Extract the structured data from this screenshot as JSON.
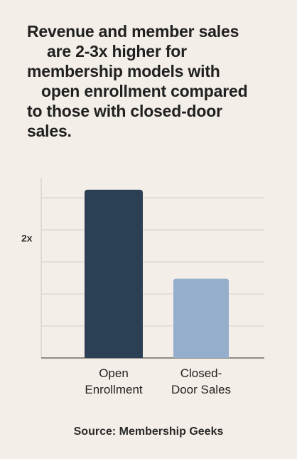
{
  "headline": {
    "lines": [
      "Revenue and member sales",
      "are 2-3x higher for",
      "membership models with",
      "open enrollment compared",
      "to those with closed-door",
      "sales."
    ]
  },
  "source": "Source: Membership Geeks",
  "colors": {
    "background": "#f3eee7",
    "bar_open": "#2b3f55",
    "bar_closed": "#94aecb",
    "grid": "#d6d0c8",
    "axis": "#6f6a64"
  },
  "chart_data": {
    "type": "bar",
    "title": "",
    "xlabel": "",
    "ylabel": "",
    "categories": [
      [
        "Open",
        "Enrollment"
      ],
      [
        "Closed-",
        "Door Sales"
      ]
    ],
    "values": [
      2.8,
      1.32
    ],
    "ylim": [
      0,
      3.2
    ],
    "y_tick_labels": [
      {
        "value": 2,
        "label": "2x"
      }
    ],
    "grid": true,
    "legend": "none"
  }
}
